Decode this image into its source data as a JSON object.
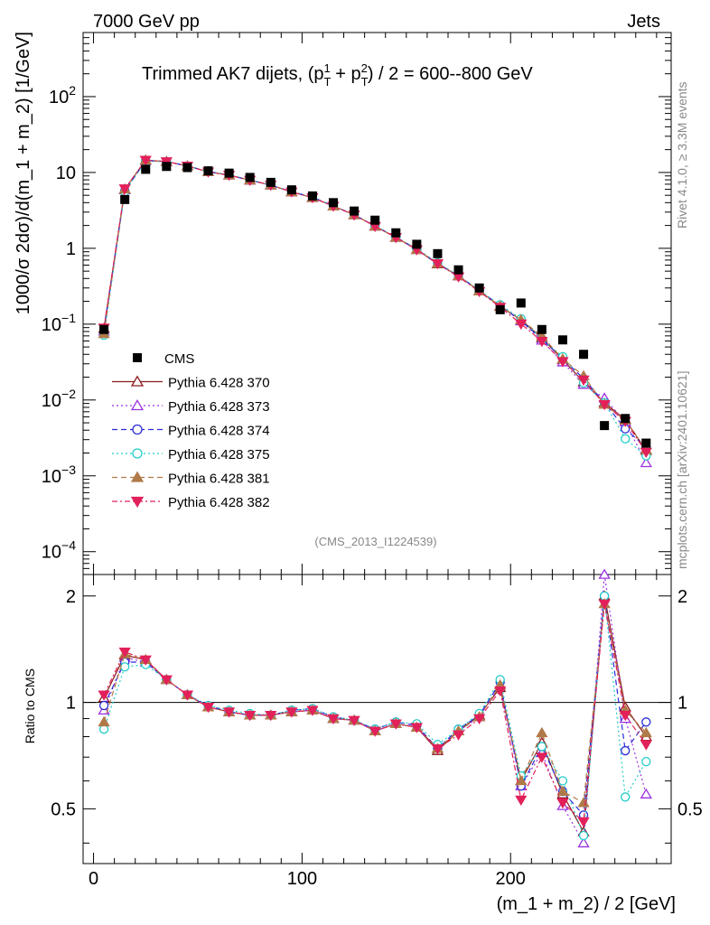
{
  "header": {
    "left": "7000 GeV pp",
    "right": "Jets"
  },
  "side_text": {
    "rivet": "Rivet 4.1.0, ≥ 3.3M events",
    "mcplots": "mcplots.cern.ch [arXiv:2401.10621]"
  },
  "chart_data": {
    "type": "line",
    "title": "Trimmed AK7 dijets, (p_T^1 + p_T^2) / 2 = 600--800 GeV",
    "title_parts": {
      "main": "Trimmed AK7 dijets, (p",
      "plus": " + p",
      "end": ") / 2 = 600--800 GeV",
      "sub": "T",
      "sup1": "1",
      "sup2": "2"
    },
    "analysis_label": "(CMS_2013_I1224539)",
    "ylabel": "1000/σ  2dσ)/d(m_1 + m_2) [1/GeV]",
    "ylabel_ratio": "Ratio to CMS",
    "xlabel": "(m_1 + m_2) / 2 [GeV]",
    "xlim": [
      -5,
      277
    ],
    "ylim_main": [
      5e-05,
      700
    ],
    "ylim_ratio": [
      0.35,
      2.3
    ],
    "x_ticks": [
      "0",
      "100",
      "200"
    ],
    "y_ticks_main": [
      {
        "base": "10",
        "exp": "2"
      },
      {
        "base": "10",
        "exp": ""
      },
      {
        "base": "1",
        "exp": ""
      },
      {
        "base": "10",
        "exp": "−1"
      },
      {
        "base": "10",
        "exp": "−2"
      },
      {
        "base": "10",
        "exp": "−3"
      },
      {
        "base": "10",
        "exp": "−4"
      }
    ],
    "y_ticks_ratio": [
      "0.5",
      "1",
      "2"
    ],
    "x": [
      5,
      15,
      25,
      35,
      45,
      55,
      65,
      75,
      85,
      95,
      105,
      115,
      125,
      135,
      145,
      155,
      165,
      175,
      185,
      195,
      205,
      215,
      225,
      235,
      245,
      255,
      265
    ],
    "cms": {
      "name": "CMS",
      "color": "#000000",
      "values": [
        0.085,
        4.4,
        11.0,
        12.0,
        11.6,
        10.5,
        9.8,
        8.6,
        7.4,
        5.9,
        4.9,
        4.0,
        3.1,
        2.35,
        1.6,
        1.13,
        0.85,
        0.52,
        0.3,
        0.155,
        0.19,
        0.085,
        0.062,
        0.04,
        0.0046,
        0.0057,
        0.0027
      ]
    },
    "series": [
      {
        "name": "Pythia 6.428 370",
        "color": "#8b1a1a",
        "marker": "triangle-open",
        "dash": "",
        "ratio": [
          1.03,
          1.36,
          1.32,
          1.16,
          1.05,
          0.97,
          0.94,
          0.92,
          0.92,
          0.94,
          0.95,
          0.9,
          0.89,
          0.83,
          0.87,
          0.85,
          0.73,
          0.83,
          0.92,
          1.1,
          0.6,
          0.77,
          0.55,
          0.43,
          2.0,
          0.97,
          0.8
        ]
      },
      {
        "name": "Pythia 6.428 373",
        "color": "#9b30e0",
        "marker": "triangle-open",
        "dash": "2,3",
        "ratio": [
          0.95,
          1.34,
          1.3,
          1.16,
          1.05,
          0.97,
          0.94,
          0.92,
          0.92,
          0.94,
          0.95,
          0.9,
          0.89,
          0.83,
          0.87,
          0.85,
          0.74,
          0.83,
          0.91,
          1.12,
          0.58,
          0.72,
          0.51,
          0.4,
          2.3,
          0.9,
          0.55
        ]
      },
      {
        "name": "Pythia 6.428 374",
        "color": "#2b2bd9",
        "marker": "circle-open",
        "dash": "6,4",
        "ratio": [
          0.98,
          1.3,
          1.3,
          1.16,
          1.05,
          0.98,
          0.94,
          0.92,
          0.92,
          0.95,
          0.96,
          0.91,
          0.89,
          0.84,
          0.88,
          0.86,
          0.74,
          0.84,
          0.92,
          1.14,
          0.58,
          0.75,
          0.56,
          0.48,
          2.0,
          0.73,
          0.88
        ]
      },
      {
        "name": "Pythia 6.428 375",
        "color": "#22ccc8",
        "marker": "circle-open",
        "dash": "2,3",
        "ratio": [
          0.84,
          1.26,
          1.28,
          1.16,
          1.05,
          0.98,
          0.95,
          0.93,
          0.92,
          0.95,
          0.96,
          0.91,
          0.89,
          0.84,
          0.88,
          0.87,
          0.76,
          0.84,
          0.93,
          1.16,
          0.62,
          0.75,
          0.6,
          0.42,
          2.0,
          0.54,
          0.68
        ]
      },
      {
        "name": "Pythia 6.428 381",
        "color": "#b07a48",
        "marker": "triangle-filled",
        "dash": "6,4",
        "ratio": [
          0.88,
          1.37,
          1.32,
          1.16,
          1.05,
          0.97,
          0.94,
          0.92,
          0.92,
          0.94,
          0.95,
          0.9,
          0.89,
          0.83,
          0.87,
          0.85,
          0.74,
          0.83,
          0.91,
          1.12,
          0.6,
          0.82,
          0.56,
          0.52,
          1.9,
          0.95,
          0.82
        ]
      },
      {
        "name": "Pythia 6.428 382",
        "color": "#e2205a",
        "marker": "triangle-down-filled",
        "dash": "6,3,2,3",
        "ratio": [
          1.05,
          1.39,
          1.32,
          1.16,
          1.05,
          0.97,
          0.94,
          0.92,
          0.92,
          0.94,
          0.95,
          0.9,
          0.89,
          0.83,
          0.87,
          0.85,
          0.74,
          0.81,
          0.9,
          1.08,
          0.53,
          0.7,
          0.52,
          0.46,
          1.9,
          0.92,
          0.76
        ]
      }
    ]
  }
}
